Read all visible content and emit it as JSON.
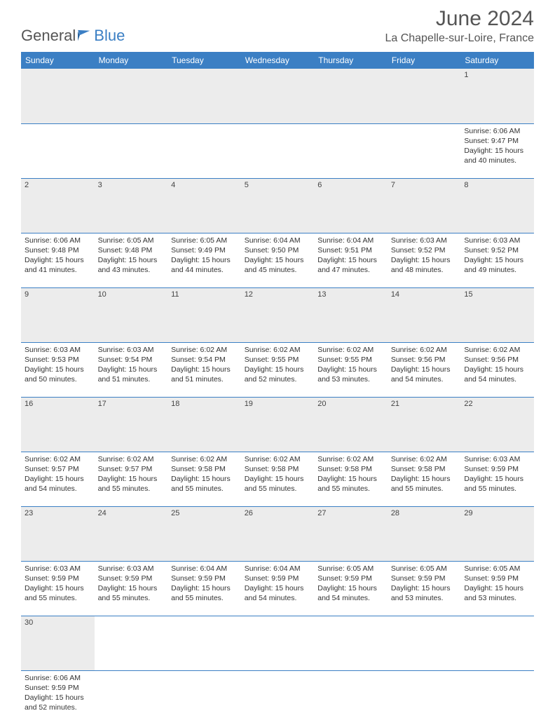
{
  "logo": {
    "word1": "General",
    "word2": "Blue"
  },
  "title": "June 2024",
  "location": "La Chapelle-sur-Loire, France",
  "colors": {
    "header_bg": "#3b7fc4",
    "header_text": "#ffffff",
    "daynum_bg": "#ececec",
    "row_border": "#3b7fc4",
    "page_bg": "#ffffff",
    "text": "#333333",
    "logo_gray": "#555555",
    "logo_blue": "#3b7fc4"
  },
  "weekdays": [
    "Sunday",
    "Monday",
    "Tuesday",
    "Wednesday",
    "Thursday",
    "Friday",
    "Saturday"
  ],
  "weeks": [
    [
      null,
      null,
      null,
      null,
      null,
      null,
      {
        "n": "1",
        "sr": "6:06 AM",
        "ss": "9:47 PM",
        "dl": "15 hours and 40 minutes."
      }
    ],
    [
      {
        "n": "2",
        "sr": "6:06 AM",
        "ss": "9:48 PM",
        "dl": "15 hours and 41 minutes."
      },
      {
        "n": "3",
        "sr": "6:05 AM",
        "ss": "9:48 PM",
        "dl": "15 hours and 43 minutes."
      },
      {
        "n": "4",
        "sr": "6:05 AM",
        "ss": "9:49 PM",
        "dl": "15 hours and 44 minutes."
      },
      {
        "n": "5",
        "sr": "6:04 AM",
        "ss": "9:50 PM",
        "dl": "15 hours and 45 minutes."
      },
      {
        "n": "6",
        "sr": "6:04 AM",
        "ss": "9:51 PM",
        "dl": "15 hours and 47 minutes."
      },
      {
        "n": "7",
        "sr": "6:03 AM",
        "ss": "9:52 PM",
        "dl": "15 hours and 48 minutes."
      },
      {
        "n": "8",
        "sr": "6:03 AM",
        "ss": "9:52 PM",
        "dl": "15 hours and 49 minutes."
      }
    ],
    [
      {
        "n": "9",
        "sr": "6:03 AM",
        "ss": "9:53 PM",
        "dl": "15 hours and 50 minutes."
      },
      {
        "n": "10",
        "sr": "6:03 AM",
        "ss": "9:54 PM",
        "dl": "15 hours and 51 minutes."
      },
      {
        "n": "11",
        "sr": "6:02 AM",
        "ss": "9:54 PM",
        "dl": "15 hours and 51 minutes."
      },
      {
        "n": "12",
        "sr": "6:02 AM",
        "ss": "9:55 PM",
        "dl": "15 hours and 52 minutes."
      },
      {
        "n": "13",
        "sr": "6:02 AM",
        "ss": "9:55 PM",
        "dl": "15 hours and 53 minutes."
      },
      {
        "n": "14",
        "sr": "6:02 AM",
        "ss": "9:56 PM",
        "dl": "15 hours and 54 minutes."
      },
      {
        "n": "15",
        "sr": "6:02 AM",
        "ss": "9:56 PM",
        "dl": "15 hours and 54 minutes."
      }
    ],
    [
      {
        "n": "16",
        "sr": "6:02 AM",
        "ss": "9:57 PM",
        "dl": "15 hours and 54 minutes."
      },
      {
        "n": "17",
        "sr": "6:02 AM",
        "ss": "9:57 PM",
        "dl": "15 hours and 55 minutes."
      },
      {
        "n": "18",
        "sr": "6:02 AM",
        "ss": "9:58 PM",
        "dl": "15 hours and 55 minutes."
      },
      {
        "n": "19",
        "sr": "6:02 AM",
        "ss": "9:58 PM",
        "dl": "15 hours and 55 minutes."
      },
      {
        "n": "20",
        "sr": "6:02 AM",
        "ss": "9:58 PM",
        "dl": "15 hours and 55 minutes."
      },
      {
        "n": "21",
        "sr": "6:02 AM",
        "ss": "9:58 PM",
        "dl": "15 hours and 55 minutes."
      },
      {
        "n": "22",
        "sr": "6:03 AM",
        "ss": "9:59 PM",
        "dl": "15 hours and 55 minutes."
      }
    ],
    [
      {
        "n": "23",
        "sr": "6:03 AM",
        "ss": "9:59 PM",
        "dl": "15 hours and 55 minutes."
      },
      {
        "n": "24",
        "sr": "6:03 AM",
        "ss": "9:59 PM",
        "dl": "15 hours and 55 minutes."
      },
      {
        "n": "25",
        "sr": "6:04 AM",
        "ss": "9:59 PM",
        "dl": "15 hours and 55 minutes."
      },
      {
        "n": "26",
        "sr": "6:04 AM",
        "ss": "9:59 PM",
        "dl": "15 hours and 54 minutes."
      },
      {
        "n": "27",
        "sr": "6:05 AM",
        "ss": "9:59 PM",
        "dl": "15 hours and 54 minutes."
      },
      {
        "n": "28",
        "sr": "6:05 AM",
        "ss": "9:59 PM",
        "dl": "15 hours and 53 minutes."
      },
      {
        "n": "29",
        "sr": "6:05 AM",
        "ss": "9:59 PM",
        "dl": "15 hours and 53 minutes."
      }
    ],
    [
      {
        "n": "30",
        "sr": "6:06 AM",
        "ss": "9:59 PM",
        "dl": "15 hours and 52 minutes."
      },
      null,
      null,
      null,
      null,
      null,
      null
    ]
  ],
  "labels": {
    "sunrise": "Sunrise:",
    "sunset": "Sunset:",
    "daylight": "Daylight:"
  }
}
